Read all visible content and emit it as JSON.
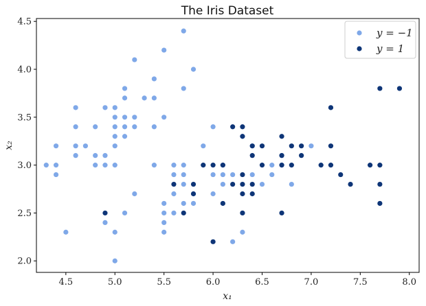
{
  "chart_data": {
    "type": "scatter",
    "title": "The Iris Dataset",
    "xlabel": "x₁",
    "ylabel": "x₂",
    "xlim": [
      4.2,
      8.1
    ],
    "ylim": [
      1.88,
      4.53
    ],
    "xticks": [
      "4.5",
      "5.0",
      "5.5",
      "6.0",
      "6.5",
      "7.0",
      "7.5",
      "8.0"
    ],
    "yticks": [
      "2.0",
      "2.5",
      "3.0",
      "3.5",
      "4.0",
      "4.5"
    ],
    "grid": false,
    "legend_position": "top-right",
    "series": [
      {
        "name": "y = −1",
        "color": "#7fa8e8",
        "points": [
          [
            4.3,
            3.0
          ],
          [
            4.4,
            2.9
          ],
          [
            4.4,
            3.0
          ],
          [
            4.4,
            3.2
          ],
          [
            4.5,
            2.3
          ],
          [
            4.6,
            3.1
          ],
          [
            4.6,
            3.2
          ],
          [
            4.6,
            3.4
          ],
          [
            4.6,
            3.6
          ],
          [
            4.7,
            3.2
          ],
          [
            4.8,
            3.0
          ],
          [
            4.8,
            3.1
          ],
          [
            4.8,
            3.4
          ],
          [
            4.9,
            2.4
          ],
          [
            4.9,
            3.0
          ],
          [
            4.9,
            3.1
          ],
          [
            4.9,
            3.6
          ],
          [
            5.0,
            2.0
          ],
          [
            5.0,
            2.3
          ],
          [
            5.0,
            3.0
          ],
          [
            5.0,
            3.2
          ],
          [
            5.0,
            3.3
          ],
          [
            5.0,
            3.4
          ],
          [
            5.0,
            3.5
          ],
          [
            5.0,
            3.6
          ],
          [
            5.1,
            2.5
          ],
          [
            5.1,
            3.3
          ],
          [
            5.1,
            3.4
          ],
          [
            5.1,
            3.5
          ],
          [
            5.1,
            3.7
          ],
          [
            5.1,
            3.8
          ],
          [
            5.2,
            2.7
          ],
          [
            5.2,
            3.4
          ],
          [
            5.2,
            3.5
          ],
          [
            5.2,
            4.1
          ],
          [
            5.3,
            3.7
          ],
          [
            5.4,
            3.0
          ],
          [
            5.4,
            3.4
          ],
          [
            5.4,
            3.7
          ],
          [
            5.4,
            3.9
          ],
          [
            5.5,
            2.3
          ],
          [
            5.5,
            2.4
          ],
          [
            5.5,
            2.5
          ],
          [
            5.5,
            2.6
          ],
          [
            5.5,
            3.5
          ],
          [
            5.5,
            4.2
          ],
          [
            5.6,
            2.5
          ],
          [
            5.6,
            2.7
          ],
          [
            5.6,
            2.9
          ],
          [
            5.6,
            3.0
          ],
          [
            5.7,
            2.6
          ],
          [
            5.7,
            2.8
          ],
          [
            5.7,
            2.9
          ],
          [
            5.7,
            3.0
          ],
          [
            5.7,
            3.8
          ],
          [
            5.7,
            4.4
          ],
          [
            5.8,
            2.6
          ],
          [
            5.8,
            2.7
          ],
          [
            5.8,
            4.0
          ],
          [
            5.9,
            3.2
          ],
          [
            6.0,
            2.7
          ],
          [
            6.0,
            2.9
          ],
          [
            6.0,
            3.4
          ],
          [
            6.1,
            2.8
          ],
          [
            6.1,
            2.9
          ],
          [
            6.1,
            3.0
          ],
          [
            6.2,
            2.2
          ],
          [
            6.2,
            2.9
          ],
          [
            6.3,
            2.3
          ],
          [
            6.3,
            2.5
          ],
          [
            6.3,
            3.3
          ],
          [
            6.4,
            2.9
          ],
          [
            6.4,
            3.2
          ],
          [
            6.5,
            2.8
          ],
          [
            6.6,
            2.9
          ],
          [
            6.6,
            3.0
          ],
          [
            6.7,
            3.0
          ],
          [
            6.7,
            3.1
          ],
          [
            6.8,
            2.8
          ],
          [
            7.0,
            3.2
          ]
        ]
      },
      {
        "name": "y = 1",
        "color": "#0e3577",
        "points": [
          [
            4.9,
            2.5
          ],
          [
            5.6,
            2.8
          ],
          [
            5.7,
            2.5
          ],
          [
            5.8,
            2.7
          ],
          [
            5.8,
            2.8
          ],
          [
            5.9,
            3.0
          ],
          [
            6.0,
            2.2
          ],
          [
            6.0,
            3.0
          ],
          [
            6.1,
            2.6
          ],
          [
            6.1,
            3.0
          ],
          [
            6.2,
            2.8
          ],
          [
            6.2,
            3.4
          ],
          [
            6.3,
            2.5
          ],
          [
            6.3,
            2.7
          ],
          [
            6.3,
            2.8
          ],
          [
            6.3,
            2.9
          ],
          [
            6.3,
            3.3
          ],
          [
            6.3,
            3.4
          ],
          [
            6.4,
            2.7
          ],
          [
            6.4,
            2.8
          ],
          [
            6.4,
            3.1
          ],
          [
            6.4,
            3.2
          ],
          [
            6.5,
            3.0
          ],
          [
            6.5,
            3.2
          ],
          [
            6.7,
            2.5
          ],
          [
            6.7,
            3.0
          ],
          [
            6.7,
            3.1
          ],
          [
            6.7,
            3.3
          ],
          [
            6.8,
            3.0
          ],
          [
            6.8,
            3.2
          ],
          [
            6.9,
            3.1
          ],
          [
            6.9,
            3.2
          ],
          [
            7.1,
            3.0
          ],
          [
            7.2,
            3.0
          ],
          [
            7.2,
            3.2
          ],
          [
            7.2,
            3.6
          ],
          [
            7.3,
            2.9
          ],
          [
            7.4,
            2.8
          ],
          [
            7.6,
            3.0
          ],
          [
            7.7,
            2.6
          ],
          [
            7.7,
            2.8
          ],
          [
            7.7,
            3.0
          ],
          [
            7.7,
            3.8
          ],
          [
            7.9,
            3.8
          ]
        ]
      }
    ]
  }
}
